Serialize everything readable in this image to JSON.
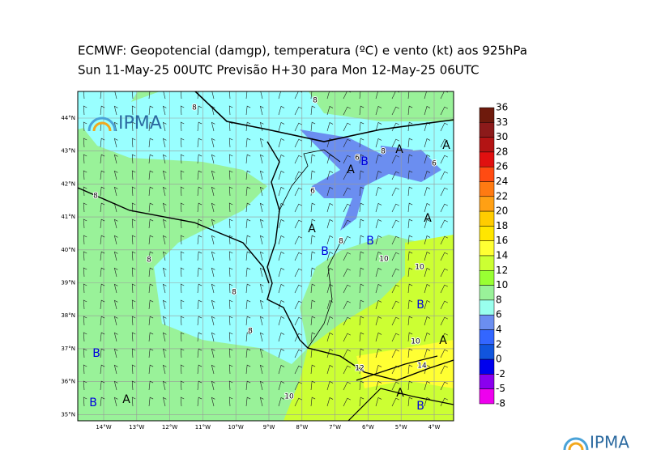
{
  "header": {
    "title_lines": [
      "ECMWF:  Geopotencial (damgp), temperatura (ºC) e vento (kt) aos 925hPa",
      "Sun 11-May-25 00UTC Previsão H+30 para Mon 12-May-25 06UTC"
    ]
  },
  "map": {
    "lat_labels": [
      "44°N",
      "43°N",
      "42°N",
      "41°N",
      "40°N",
      "39°N",
      "38°N",
      "37°N",
      "36°N",
      "35°N"
    ],
    "lon_labels": [
      "14°W",
      "13°W",
      "12°W",
      "11°W",
      "10°W",
      "9°W",
      "8°W",
      "7°W",
      "6°W",
      "5°W",
      "4°W"
    ],
    "pressure_centres": [
      "A",
      "B",
      "A",
      "B",
      "A",
      "A",
      "A",
      "B",
      "B",
      "A",
      "B",
      "B",
      "A",
      "A",
      "B"
    ],
    "contour_labels": [
      "8",
      "6",
      "8",
      "6",
      "6",
      "8",
      "8",
      "10",
      "10",
      "8",
      "8",
      "10",
      "10",
      "12",
      "14",
      "8",
      "8"
    ],
    "logo": "IPMA"
  },
  "colorbar": {
    "levels": [
      36,
      33,
      30,
      28,
      26,
      24,
      22,
      20,
      18,
      16,
      14,
      12,
      10,
      8,
      6,
      4,
      2,
      0,
      -2,
      -5,
      -8
    ],
    "colors": [
      "#6e1a0c",
      "#8c1a1a",
      "#b31414",
      "#e01010",
      "#ff4b12",
      "#ff7a12",
      "#ffa014",
      "#ffcc00",
      "#ffe600",
      "#ffff33",
      "#ccff33",
      "#99ff33",
      "#99f299",
      "#99ffee",
      "#6b8ef0",
      "#3366ff",
      "#1155dd",
      "#0000ee",
      "#8a00ee",
      "#ee00ee"
    ]
  },
  "footer": {
    "logo": "IPMA"
  }
}
